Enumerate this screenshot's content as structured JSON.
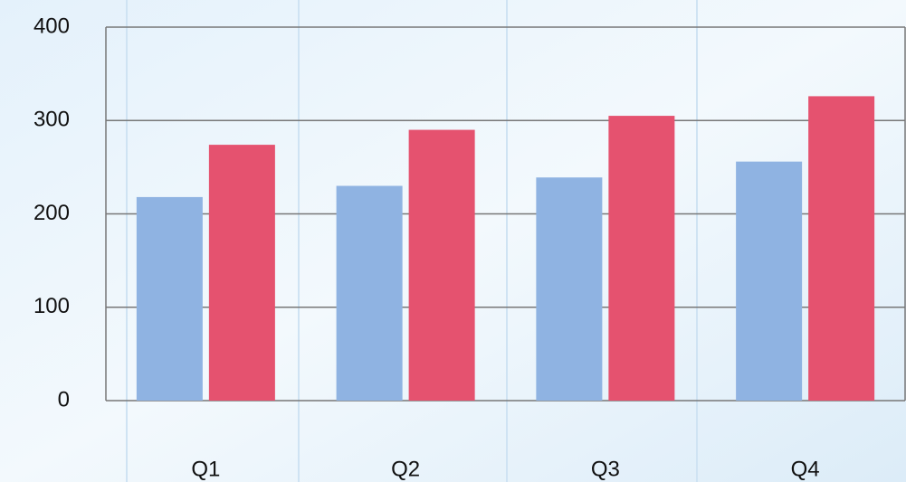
{
  "chart_data": {
    "type": "bar",
    "categories": [
      "Q1",
      "Q2",
      "Q3",
      "Q4"
    ],
    "series": [
      {
        "color": "#8fb3e2",
        "values": [
          218,
          230,
          239,
          256
        ]
      },
      {
        "color": "#e5526f",
        "values": [
          274,
          290,
          305,
          326
        ]
      }
    ],
    "ylim": [
      0,
      400
    ],
    "yticks": [
      0,
      100,
      200,
      300,
      400
    ],
    "grid": true
  }
}
